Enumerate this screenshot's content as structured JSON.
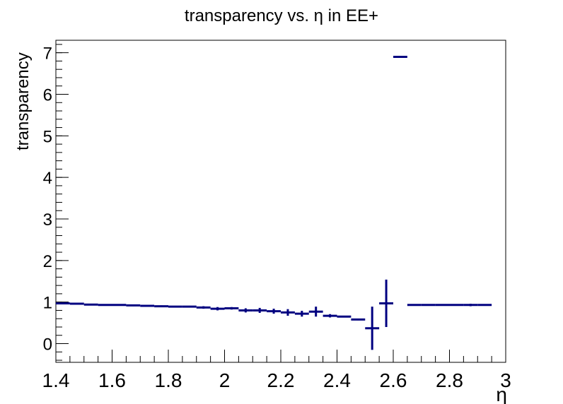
{
  "chart_data": {
    "type": "scatter",
    "title": "transparency vs. η in EE+",
    "xlabel": "η",
    "ylabel": "transparency",
    "xlim": [
      1.4,
      3.0
    ],
    "ylim": [
      -0.45,
      7.3
    ],
    "x_ticks": [
      1.4,
      1.6,
      1.8,
      2.0,
      2.2,
      2.4,
      2.6,
      2.8,
      3.0
    ],
    "x_tick_labels": [
      "1.4",
      "1.6",
      "1.8",
      "2",
      "2.2",
      "2.4",
      "2.6",
      "2.8",
      "3"
    ],
    "y_ticks": [
      0,
      1,
      2,
      3,
      4,
      5,
      6,
      7
    ],
    "y_tick_labels": [
      "0",
      "1",
      "2",
      "3",
      "4",
      "5",
      "6",
      "7"
    ],
    "grid": false,
    "legend": false,
    "bin_width": 0.05,
    "series": [
      {
        "color": "#000080",
        "x": [
          1.425,
          1.475,
          1.525,
          1.575,
          1.625,
          1.675,
          1.725,
          1.775,
          1.825,
          1.875,
          1.925,
          1.975,
          2.025,
          2.075,
          2.125,
          2.175,
          2.225,
          2.275,
          2.325,
          2.375,
          2.425,
          2.475,
          2.525,
          2.575,
          2.625,
          2.675,
          2.725,
          2.775,
          2.825,
          2.875,
          2.925
        ],
        "y": [
          0.97,
          0.96,
          0.94,
          0.93,
          0.93,
          0.92,
          0.91,
          0.9,
          0.89,
          0.89,
          0.87,
          0.84,
          0.85,
          0.8,
          0.8,
          0.78,
          0.75,
          0.72,
          0.77,
          0.67,
          0.65,
          0.58,
          0.37,
          0.97,
          6.9,
          0.93,
          0.93,
          0.93,
          0.93,
          0.93,
          0.93
        ],
        "yerr": [
          0.02,
          0.02,
          0.02,
          0.02,
          0.02,
          0.02,
          0.02,
          0.02,
          0.02,
          0.02,
          0.03,
          0.04,
          0.03,
          0.05,
          0.06,
          0.06,
          0.08,
          0.07,
          0.12,
          0.04,
          0.02,
          0.02,
          0.52,
          0.57,
          0.0,
          0.02,
          0.0,
          0.0,
          0.02,
          0.03,
          0.0
        ]
      }
    ]
  }
}
